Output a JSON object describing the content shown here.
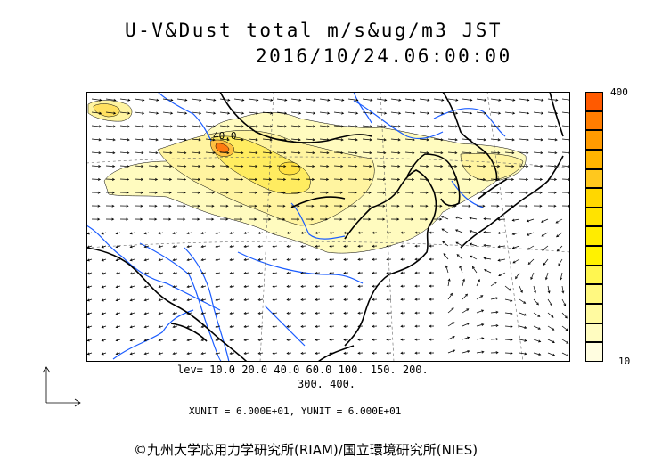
{
  "title": {
    "line1": "U-V&Dust total m/s&ug/m3 JST",
    "line2": "2016/10/24.06:00:00"
  },
  "map_label": "40.0",
  "colorbar": {
    "max_label": "400",
    "min_label": "10",
    "colors": [
      "#ff5a00",
      "#ff7d00",
      "#ff9b00",
      "#ffb400",
      "#ffc81e",
      "#ffd700",
      "#ffe300",
      "#ffec00",
      "#fff200",
      "#fff650",
      "#fff880",
      "#fffaa0",
      "#fffcc0",
      "#fffde0"
    ]
  },
  "levels": {
    "line1": "lev= 10.0 20.0 40.0 60.0 100. 150. 200.",
    "line2": "300. 400."
  },
  "units": "XUNIT = 6.000E+01, YUNIT = 6.000E+01",
  "copyright": "©九州大学応用力学研究所(RIAM)/国立環境研究所(NIES)"
}
